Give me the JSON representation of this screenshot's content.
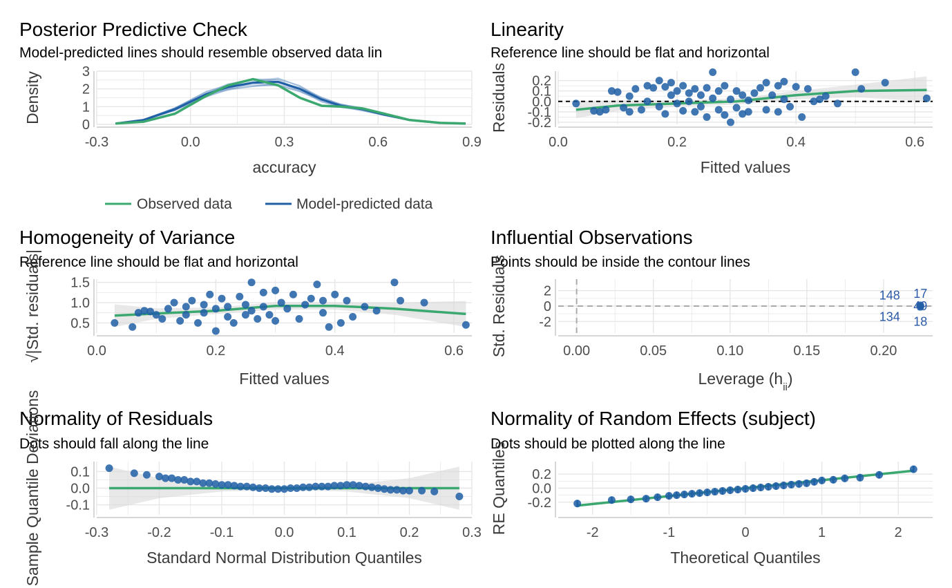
{
  "colors": {
    "green": "#3aa86f",
    "blue": "#1f5fa6",
    "grid": "#e6e6e6",
    "band": "#d9d9d9"
  },
  "chart_data": [
    {
      "type": "line",
      "title": "Posterior Predictive Check",
      "subtitle": "Model-predicted lines should resemble observed data lin",
      "xlabel": "accuracy",
      "ylabel": "Density",
      "xlim": [
        -0.3,
        0.9
      ],
      "ylim": [
        0,
        3
      ],
      "xticks": [
        "-0.3",
        "0.0",
        "0.3",
        "0.6",
        "0.9"
      ],
      "yticks": [
        "0",
        "1",
        "2",
        "3"
      ],
      "legend": {
        "position": "bottom",
        "items": [
          "Observed data",
          "Model-predicted data"
        ]
      },
      "series": [
        {
          "name": "Observed data",
          "x": [
            -0.24,
            -0.15,
            -0.05,
            0.05,
            0.12,
            0.2,
            0.28,
            0.35,
            0.42,
            0.48,
            0.55,
            0.62,
            0.7,
            0.8,
            0.88
          ],
          "y": [
            0.05,
            0.15,
            0.6,
            1.6,
            2.2,
            2.55,
            2.2,
            1.5,
            1.05,
            1.0,
            0.9,
            0.6,
            0.25,
            0.08,
            0.05
          ]
        },
        {
          "name": "Model-predicted data",
          "x": [
            -0.24,
            -0.15,
            -0.05,
            0.05,
            0.12,
            0.2,
            0.28,
            0.35,
            0.42,
            0.48,
            0.55,
            0.62,
            0.7,
            0.8,
            0.88
          ],
          "y": [
            0.05,
            0.25,
            0.85,
            1.7,
            2.1,
            2.35,
            2.4,
            2.0,
            1.4,
            1.05,
            0.85,
            0.55,
            0.25,
            0.08,
            0.05
          ]
        }
      ]
    },
    {
      "type": "scatter",
      "title": "Linearity",
      "subtitle": "Reference line should be flat and horizontal",
      "xlabel": "Fitted values",
      "ylabel": "Residuals",
      "xlim": [
        0.0,
        0.63
      ],
      "ylim": [
        -0.22,
        0.29
      ],
      "xticks": [
        "0.0",
        "0.2",
        "0.4",
        "0.6"
      ],
      "yticks": [
        "0.2",
        "0.1",
        "0.0",
        "-0.1",
        "-0.2"
      ],
      "reference_y": 0,
      "smooth": {
        "x": [
          0.03,
          0.1,
          0.2,
          0.3,
          0.4,
          0.5,
          0.62
        ],
        "y": [
          -0.08,
          -0.04,
          -0.02,
          0.0,
          0.06,
          0.1,
          0.11
        ]
      },
      "band": {
        "x": [
          0.03,
          0.1,
          0.2,
          0.3,
          0.4,
          0.5,
          0.62
        ],
        "lower": [
          -0.16,
          -0.09,
          -0.05,
          -0.03,
          0.02,
          0.04,
          0.0
        ],
        "upper": [
          0.0,
          0.01,
          0.01,
          0.03,
          0.1,
          0.16,
          0.24
        ]
      },
      "points": {
        "x": [
          0.03,
          0.06,
          0.07,
          0.08,
          0.09,
          0.1,
          0.11,
          0.12,
          0.12,
          0.13,
          0.14,
          0.15,
          0.15,
          0.16,
          0.17,
          0.17,
          0.18,
          0.18,
          0.19,
          0.19,
          0.2,
          0.2,
          0.21,
          0.21,
          0.22,
          0.22,
          0.23,
          0.23,
          0.24,
          0.24,
          0.25,
          0.25,
          0.26,
          0.26,
          0.27,
          0.27,
          0.28,
          0.28,
          0.29,
          0.29,
          0.3,
          0.3,
          0.31,
          0.31,
          0.32,
          0.32,
          0.33,
          0.34,
          0.35,
          0.35,
          0.36,
          0.37,
          0.37,
          0.38,
          0.38,
          0.39,
          0.4,
          0.41,
          0.42,
          0.43,
          0.44,
          0.45,
          0.47,
          0.5,
          0.51,
          0.55,
          0.62
        ],
        "y": [
          -0.02,
          -0.09,
          -0.1,
          -0.08,
          0.1,
          0.09,
          -0.06,
          0.05,
          -0.1,
          0.12,
          -0.08,
          0.15,
          0.0,
          0.13,
          -0.05,
          0.2,
          0.14,
          -0.12,
          0.06,
          0.18,
          -0.02,
          0.1,
          0.15,
          -0.09,
          0.0,
          0.08,
          -0.1,
          0.12,
          -0.05,
          0.06,
          0.13,
          -0.15,
          0.28,
          0.03,
          -0.08,
          0.1,
          -0.13,
          0.15,
          0.02,
          -0.2,
          0.1,
          -0.06,
          -0.12,
          0.06,
          0.01,
          -0.1,
          0.08,
          0.13,
          0.18,
          -0.08,
          0.06,
          0.15,
          -0.1,
          0.19,
          0.02,
          -0.05,
          0.14,
          -0.15,
          0.12,
          0.0,
          0.02,
          0.05,
          -0.02,
          0.28,
          0.12,
          0.18,
          0.03
        ]
      }
    },
    {
      "type": "scatter",
      "title": "Homogeneity of Variance",
      "subtitle": "Reference line should be flat and horizontal",
      "xlabel": "Fitted values",
      "ylabel": "√|Std. residuals|",
      "xlim": [
        0.0,
        0.63
      ],
      "ylim": [
        0.25,
        1.58
      ],
      "xticks": [
        "0.0",
        "0.2",
        "0.4",
        "0.6"
      ],
      "yticks": [
        "1.5",
        "1.0",
        "0.5"
      ],
      "smooth": {
        "x": [
          0.03,
          0.1,
          0.2,
          0.3,
          0.4,
          0.5,
          0.62
        ],
        "y": [
          0.68,
          0.73,
          0.8,
          0.92,
          0.92,
          0.85,
          0.72
        ]
      },
      "band": {
        "x": [
          0.03,
          0.1,
          0.2,
          0.3,
          0.4,
          0.5,
          0.62
        ],
        "lower": [
          0.4,
          0.6,
          0.72,
          0.83,
          0.83,
          0.7,
          0.4
        ],
        "upper": [
          0.96,
          0.86,
          0.88,
          1.01,
          1.01,
          1.0,
          1.04
        ]
      },
      "points": {
        "x": [
          0.03,
          0.06,
          0.07,
          0.08,
          0.09,
          0.1,
          0.11,
          0.12,
          0.13,
          0.14,
          0.15,
          0.15,
          0.16,
          0.17,
          0.18,
          0.18,
          0.19,
          0.2,
          0.2,
          0.21,
          0.22,
          0.22,
          0.23,
          0.24,
          0.25,
          0.25,
          0.26,
          0.26,
          0.27,
          0.28,
          0.28,
          0.29,
          0.3,
          0.3,
          0.31,
          0.32,
          0.33,
          0.34,
          0.35,
          0.36,
          0.37,
          0.38,
          0.38,
          0.39,
          0.4,
          0.41,
          0.42,
          0.43,
          0.45,
          0.47,
          0.5,
          0.51,
          0.55,
          0.62
        ],
        "y": [
          0.5,
          0.4,
          0.75,
          0.8,
          0.78,
          0.7,
          0.6,
          0.85,
          1.0,
          0.55,
          0.9,
          0.7,
          1.05,
          0.5,
          0.95,
          0.75,
          1.2,
          0.3,
          0.85,
          1.1,
          0.65,
          0.9,
          0.5,
          1.15,
          0.7,
          0.95,
          1.5,
          0.8,
          0.6,
          1.25,
          0.9,
          0.7,
          1.3,
          0.55,
          1.0,
          0.85,
          1.2,
          0.6,
          0.95,
          1.1,
          1.45,
          0.75,
          1.05,
          0.4,
          1.2,
          0.5,
          1.05,
          0.65,
          0.9,
          0.8,
          1.5,
          1.05,
          1.0,
          0.45
        ]
      }
    },
    {
      "type": "scatter",
      "title": "Influential Observations",
      "subtitle": "Points should be inside the contour lines",
      "xlabel": "Leverage (h",
      "xlabel_sub": "ii",
      "xlabel_suffix": ")",
      "ylabel": "Std. Residuals",
      "xlim": [
        -0.012,
        0.232
      ],
      "ylim": [
        -3.5,
        3.5
      ],
      "xticks": [
        "0.00",
        "0.05",
        "0.10",
        "0.15",
        "0.20"
      ],
      "yticks": [
        "2",
        "0",
        "-2"
      ],
      "reference_x": 0,
      "reference_y": 0,
      "labels": [
        {
          "text": "148",
          "x": 0.204,
          "y": 1.4
        },
        {
          "text": "17",
          "x": 0.224,
          "y": 1.6
        },
        {
          "text": "49",
          "x": 0.224,
          "y": 0.0
        },
        {
          "text": "134",
          "x": 0.204,
          "y": -1.4
        },
        {
          "text": "18",
          "x": 0.224,
          "y": -2.0
        }
      ],
      "points": {
        "x": [
          0.224,
          0.224,
          0.224
        ],
        "y": [
          0.1,
          0.0,
          -0.1
        ]
      }
    },
    {
      "type": "scatter",
      "title": "Normality of Residuals",
      "subtitle": "Dots should fall along the line",
      "xlabel": "Standard Normal Distribution Quantiles",
      "ylabel": "Sample Quantile Deviations",
      "xlim": [
        -0.3,
        0.3
      ],
      "ylim": [
        -0.16,
        0.16
      ],
      "xticks": [
        "-0.3",
        "-0.2",
        "-0.1",
        "0.0",
        "0.1",
        "0.2",
        "0.3"
      ],
      "yticks": [
        "0.1",
        "0.0",
        "-0.1"
      ],
      "reference_y": 0,
      "band": {
        "x": [
          -0.28,
          -0.2,
          -0.1,
          0.0,
          0.1,
          0.2,
          0.28
        ],
        "lower": [
          -0.13,
          -0.06,
          -0.02,
          -0.01,
          -0.02,
          -0.06,
          -0.13
        ],
        "upper": [
          0.13,
          0.06,
          0.02,
          0.01,
          0.02,
          0.06,
          0.13
        ]
      },
      "points": {
        "x": [
          -0.28,
          -0.24,
          -0.22,
          -0.2,
          -0.19,
          -0.18,
          -0.17,
          -0.16,
          -0.15,
          -0.14,
          -0.13,
          -0.12,
          -0.11,
          -0.1,
          -0.09,
          -0.08,
          -0.07,
          -0.06,
          -0.05,
          -0.04,
          -0.03,
          -0.02,
          -0.01,
          0.0,
          0.01,
          0.02,
          0.03,
          0.04,
          0.05,
          0.06,
          0.07,
          0.08,
          0.09,
          0.1,
          0.11,
          0.12,
          0.13,
          0.14,
          0.15,
          0.16,
          0.17,
          0.18,
          0.19,
          0.2,
          0.22,
          0.24,
          0.28
        ],
        "y": [
          0.12,
          0.09,
          0.08,
          0.07,
          0.06,
          0.06,
          0.05,
          0.05,
          0.04,
          0.04,
          0.03,
          0.03,
          0.025,
          0.02,
          0.02,
          0.015,
          0.01,
          0.01,
          0.005,
          0.0,
          0.0,
          -0.005,
          -0.005,
          -0.005,
          0.0,
          0.0,
          0.005,
          0.005,
          0.01,
          0.01,
          0.01,
          0.015,
          0.015,
          0.02,
          0.02,
          0.015,
          0.01,
          0.005,
          0.0,
          -0.005,
          -0.01,
          -0.01,
          -0.015,
          -0.015,
          -0.015,
          -0.02,
          -0.05
        ]
      }
    },
    {
      "type": "scatter",
      "title": "Normality of Random Effects (subject)",
      "subtitle": "Dots should be plotted along the line",
      "xlabel": "Theoretical Quantiles",
      "ylabel": "RE Quantiles",
      "xlim": [
        -2.45,
        2.45
      ],
      "ylim": [
        -0.38,
        0.38
      ],
      "xticks": [
        "-2",
        "-1",
        "0",
        "1",
        "2"
      ],
      "yticks": [
        "0.2",
        "0.0",
        "-0.2"
      ],
      "fit_line": {
        "x": [
          -2.2,
          2.2
        ],
        "y": [
          -0.25,
          0.25
        ]
      },
      "points": {
        "x": [
          -2.2,
          -1.75,
          -1.5,
          -1.3,
          -1.15,
          -1.0,
          -0.9,
          -0.8,
          -0.7,
          -0.6,
          -0.5,
          -0.4,
          -0.3,
          -0.2,
          -0.1,
          0.0,
          0.1,
          0.2,
          0.3,
          0.4,
          0.5,
          0.6,
          0.7,
          0.8,
          0.9,
          1.0,
          1.15,
          1.3,
          1.5,
          1.75,
          2.2
        ],
        "y": [
          -0.22,
          -0.17,
          -0.16,
          -0.15,
          -0.13,
          -0.11,
          -0.1,
          -0.09,
          -0.08,
          -0.07,
          -0.06,
          -0.05,
          -0.04,
          -0.03,
          -0.02,
          -0.01,
          0.0,
          0.01,
          0.02,
          0.03,
          0.04,
          0.05,
          0.06,
          0.07,
          0.09,
          0.11,
          0.12,
          0.14,
          0.15,
          0.19,
          0.27
        ]
      },
      "err_halfwidth": 0.05
    }
  ]
}
